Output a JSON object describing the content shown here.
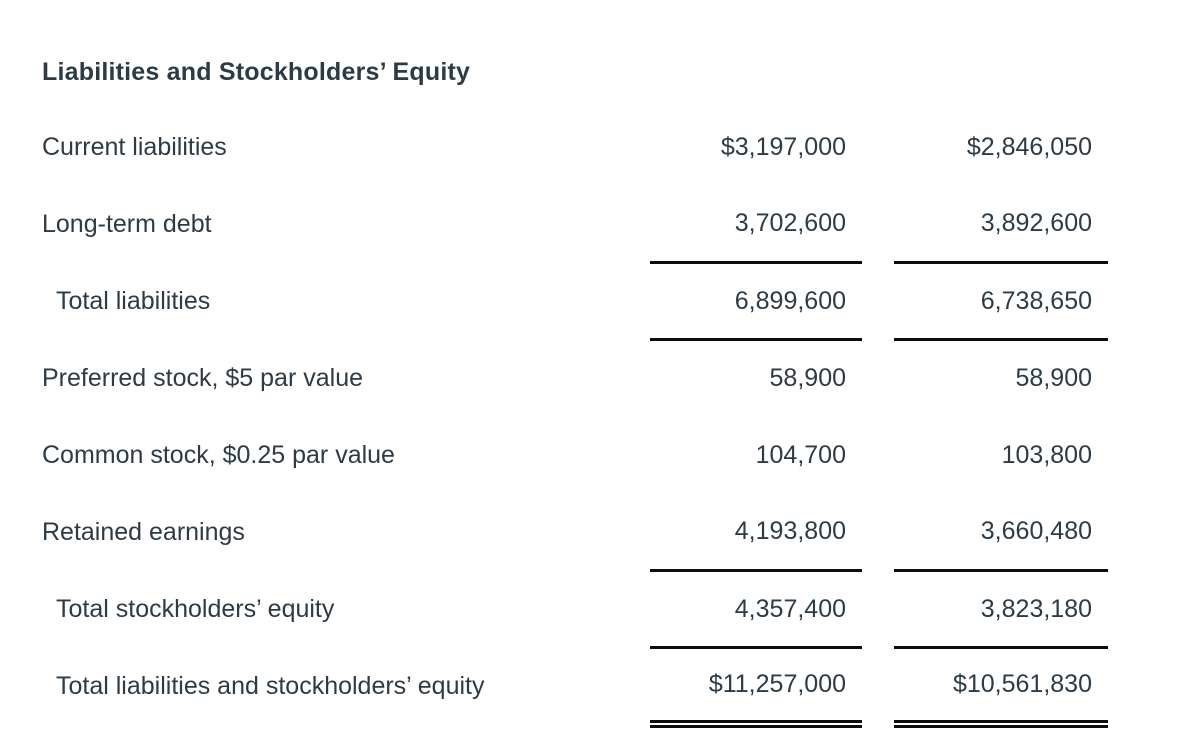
{
  "colors": {
    "text": "#2D3B45",
    "rule": "#0d0d0d",
    "background": "#ffffff"
  },
  "table": {
    "title": "Liabilities and Stockholders’ Equity",
    "columns": [
      "label",
      "current_year",
      "prior_year"
    ],
    "rows": [
      {
        "label": "Current liabilities",
        "indent": false,
        "col1": "$3,197,000",
        "col2": "$2,846,050",
        "underline": "none"
      },
      {
        "label": "Long-term debt",
        "indent": false,
        "col1": "3,702,600",
        "col2": "3,892,600",
        "underline": "single"
      },
      {
        "label": "Total liabilities",
        "indent": true,
        "col1": "6,899,600",
        "col2": "6,738,650",
        "underline": "single"
      },
      {
        "label": "Preferred stock, $5 par value",
        "indent": false,
        "col1": "58,900",
        "col2": "58,900",
        "underline": "none"
      },
      {
        "label": "Common stock, $0.25 par value",
        "indent": false,
        "col1": "104,700",
        "col2": "103,800",
        "underline": "none"
      },
      {
        "label": "Retained earnings",
        "indent": false,
        "col1": "4,193,800",
        "col2": "3,660,480",
        "underline": "single"
      },
      {
        "label": "Total stockholders’ equity",
        "indent": true,
        "col1": "4,357,400",
        "col2": "3,823,180",
        "underline": "single"
      },
      {
        "label": "Total liabilities and stockholders’ equity",
        "indent": true,
        "col1": "$11,257,000",
        "col2": "$10,561,830",
        "underline": "double"
      }
    ]
  }
}
